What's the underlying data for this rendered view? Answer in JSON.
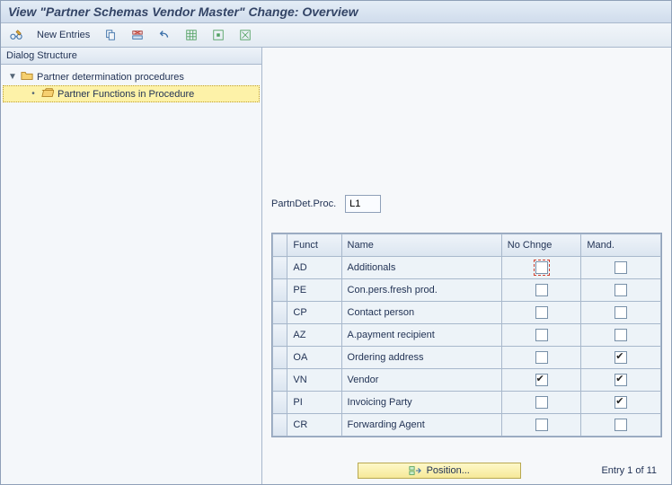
{
  "title": "View \"Partner Schemas Vendor Master\" Change: Overview",
  "toolbar": {
    "new_entries_label": "New Entries"
  },
  "sidebar": {
    "header": "Dialog Structure",
    "items": [
      {
        "label": "Partner determination procedures",
        "level": 1,
        "expanded": true,
        "selected": false,
        "open": false
      },
      {
        "label": "Partner Functions in Procedure",
        "level": 2,
        "expanded": false,
        "selected": true,
        "open": true
      }
    ]
  },
  "field": {
    "label": "PartnDet.Proc.",
    "value": "L1"
  },
  "table": {
    "columns": [
      "Funct",
      "Name",
      "No Chnge",
      "Mand."
    ],
    "rows": [
      {
        "funct": "AD",
        "name": "Additionals",
        "no_change": false,
        "mand": false,
        "focus": true
      },
      {
        "funct": "PE",
        "name": "Con.pers.fresh prod.",
        "no_change": false,
        "mand": false
      },
      {
        "funct": "CP",
        "name": "Contact person",
        "no_change": false,
        "mand": false
      },
      {
        "funct": "AZ",
        "name": "A.payment recipient",
        "no_change": false,
        "mand": false
      },
      {
        "funct": "OA",
        "name": "Ordering address",
        "no_change": false,
        "mand": true
      },
      {
        "funct": "VN",
        "name": "Vendor",
        "no_change": true,
        "mand": true
      },
      {
        "funct": "PI",
        "name": "Invoicing Party",
        "no_change": false,
        "mand": true
      },
      {
        "funct": "CR",
        "name": "Forwarding Agent",
        "no_change": false,
        "mand": false
      }
    ]
  },
  "footer": {
    "position_label": "Position...",
    "entry_text": "Entry 1 of 11"
  }
}
